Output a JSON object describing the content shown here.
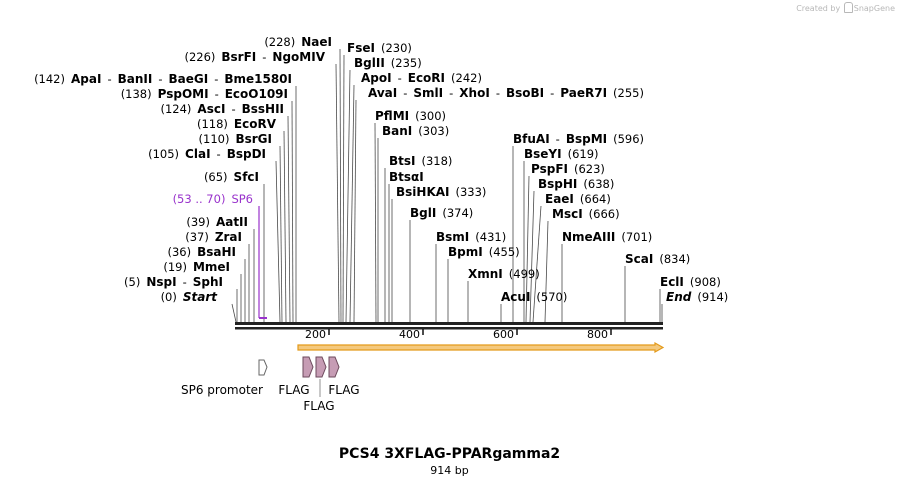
{
  "credit": {
    "label": "Created by",
    "brand": "SnapGene"
  },
  "plasmid": {
    "name": "PCS4 3XFLAG-PPARgamma2",
    "length_label": "914 bp"
  },
  "colors": {
    "primer": "#9933cc",
    "orf_fill": "#f4c97e",
    "orf_stroke": "#e39a1b",
    "feature": "#c69cb4",
    "line": "#4a4a4a"
  },
  "sites": [
    {
      "id": "s1",
      "row": [
        {
          "t": "(228)",
          "b": false
        },
        {
          "t": "NaeI",
          "b": true
        }
      ]
    },
    {
      "id": "s2",
      "row": [
        {
          "t": "(226)",
          "b": false
        },
        {
          "t": "BsrFI",
          "b": true
        },
        {
          "t": "-",
          "b": false
        },
        {
          "t": "NgoMIV",
          "b": true
        }
      ]
    },
    {
      "id": "s3",
      "row": [
        {
          "t": "(142)",
          "b": false
        },
        {
          "t": "ApaI",
          "b": true
        },
        {
          "t": "-",
          "b": false
        },
        {
          "t": "BanII",
          "b": true
        },
        {
          "t": "-",
          "b": false
        },
        {
          "t": "BaeGI",
          "b": true
        },
        {
          "t": "-",
          "b": false
        },
        {
          "t": "Bme1580I",
          "b": true
        }
      ]
    },
    {
      "id": "s4",
      "row": [
        {
          "t": "(138)",
          "b": false
        },
        {
          "t": "PspOMI",
          "b": true
        },
        {
          "t": "-",
          "b": false
        },
        {
          "t": "EcoO109I",
          "b": true
        }
      ]
    },
    {
      "id": "s5",
      "row": [
        {
          "t": "(124)",
          "b": false
        },
        {
          "t": "AscI",
          "b": true
        },
        {
          "t": "-",
          "b": false
        },
        {
          "t": "BssHII",
          "b": true
        }
      ]
    },
    {
      "id": "s6",
      "row": [
        {
          "t": "(118)",
          "b": false
        },
        {
          "t": "EcoRV",
          "b": true
        }
      ]
    },
    {
      "id": "s7",
      "row": [
        {
          "t": "(110)",
          "b": false
        },
        {
          "t": "BsrGI",
          "b": true
        }
      ]
    },
    {
      "id": "s8",
      "row": [
        {
          "t": "(105)",
          "b": false
        },
        {
          "t": "ClaI",
          "b": true
        },
        {
          "t": "-",
          "b": false
        },
        {
          "t": "BspDI",
          "b": true
        }
      ]
    },
    {
      "id": "s9",
      "row": [
        {
          "t": "(65)",
          "b": false
        },
        {
          "t": "SfcI",
          "b": true
        }
      ]
    },
    {
      "id": "s10",
      "row": [
        {
          "t": "(53 .. 70)",
          "b": false,
          "c": "primer"
        },
        {
          "t": "SP6",
          "b": false,
          "c": "primer"
        }
      ]
    },
    {
      "id": "s11",
      "row": [
        {
          "t": "(39)",
          "b": false
        },
        {
          "t": "AatII",
          "b": true
        }
      ]
    },
    {
      "id": "s12",
      "row": [
        {
          "t": "(37)",
          "b": false
        },
        {
          "t": "ZraI",
          "b": true
        }
      ]
    },
    {
      "id": "s13",
      "row": [
        {
          "t": "(36)",
          "b": false
        },
        {
          "t": "BsaHI",
          "b": true
        }
      ]
    },
    {
      "id": "s14",
      "row": [
        {
          "t": "(19)",
          "b": false
        },
        {
          "t": "MmeI",
          "b": true
        }
      ]
    },
    {
      "id": "s15",
      "row": [
        {
          "t": "(5)",
          "b": false
        },
        {
          "t": "NspI",
          "b": true
        },
        {
          "t": "-",
          "b": false
        },
        {
          "t": "SphI",
          "b": true
        }
      ]
    },
    {
      "id": "s16",
      "row": [
        {
          "t": "(0)",
          "b": false
        },
        {
          "t": "Start",
          "b": true,
          "i": true
        }
      ]
    },
    {
      "id": "s17",
      "row": [
        {
          "t": "FseI",
          "b": true
        },
        {
          "t": "(230)",
          "b": false
        }
      ]
    },
    {
      "id": "s18",
      "row": [
        {
          "t": "BglII",
          "b": true
        },
        {
          "t": "(235)",
          "b": false
        }
      ]
    },
    {
      "id": "s19",
      "row": [
        {
          "t": "ApoI",
          "b": true
        },
        {
          "t": "-",
          "b": false
        },
        {
          "t": "EcoRI",
          "b": true
        },
        {
          "t": "(242)",
          "b": false
        }
      ]
    },
    {
      "id": "s20",
      "row": [
        {
          "t": "AvaI",
          "b": true
        },
        {
          "t": "-",
          "b": false
        },
        {
          "t": "SmlI",
          "b": true
        },
        {
          "t": "-",
          "b": false
        },
        {
          "t": "XhoI",
          "b": true
        },
        {
          "t": "-",
          "b": false
        },
        {
          "t": "BsoBI",
          "b": true
        },
        {
          "t": "-",
          "b": false
        },
        {
          "t": "PaeR7I",
          "b": true
        },
        {
          "t": "(255)",
          "b": false
        }
      ]
    },
    {
      "id": "s21",
      "row": [
        {
          "t": "PflMI",
          "b": true
        },
        {
          "t": "(300)",
          "b": false
        }
      ]
    },
    {
      "id": "s22",
      "row": [
        {
          "t": "BanI",
          "b": true
        },
        {
          "t": "(303)",
          "b": false
        }
      ]
    },
    {
      "id": "s23",
      "row": [
        {
          "t": "BtsI",
          "b": true
        },
        {
          "t": "(318)",
          "b": false
        }
      ]
    },
    {
      "id": "s24",
      "row": [
        {
          "t": "BtsαI",
          "b": true
        }
      ]
    },
    {
      "id": "s25",
      "row": [
        {
          "t": "BsiHKAI",
          "b": true
        },
        {
          "t": "(333)",
          "b": false
        }
      ]
    },
    {
      "id": "s26",
      "row": [
        {
          "t": "BglI",
          "b": true
        },
        {
          "t": "(374)",
          "b": false
        }
      ]
    },
    {
      "id": "s27",
      "row": [
        {
          "t": "BsmI",
          "b": true
        },
        {
          "t": "(431)",
          "b": false
        }
      ]
    },
    {
      "id": "s28",
      "row": [
        {
          "t": "BpmI",
          "b": true
        },
        {
          "t": "(455)",
          "b": false
        }
      ]
    },
    {
      "id": "s29",
      "row": [
        {
          "t": "XmnI",
          "b": true
        },
        {
          "t": "(499)",
          "b": false
        }
      ]
    },
    {
      "id": "s30",
      "row": [
        {
          "t": "AcuI",
          "b": true
        },
        {
          "t": "(570)",
          "b": false
        }
      ]
    },
    {
      "id": "s31",
      "row": [
        {
          "t": "BfuAI",
          "b": true
        },
        {
          "t": "-",
          "b": false
        },
        {
          "t": "BspMI",
          "b": true
        },
        {
          "t": "(596)",
          "b": false
        }
      ]
    },
    {
      "id": "s32",
      "row": [
        {
          "t": "BseYI",
          "b": true
        },
        {
          "t": "(619)",
          "b": false
        }
      ]
    },
    {
      "id": "s33",
      "row": [
        {
          "t": "PspFI",
          "b": true
        },
        {
          "t": "(623)",
          "b": false
        }
      ]
    },
    {
      "id": "s34",
      "row": [
        {
          "t": "BspHI",
          "b": true
        },
        {
          "t": "(638)",
          "b": false
        }
      ]
    },
    {
      "id": "s35",
      "row": [
        {
          "t": "EaeI",
          "b": true
        },
        {
          "t": "(664)",
          "b": false
        }
      ]
    },
    {
      "id": "s36",
      "row": [
        {
          "t": "MscI",
          "b": true
        },
        {
          "t": "(666)",
          "b": false
        }
      ]
    },
    {
      "id": "s37",
      "row": [
        {
          "t": "NmeAIII",
          "b": true
        },
        {
          "t": "(701)",
          "b": false
        }
      ]
    },
    {
      "id": "s38",
      "row": [
        {
          "t": "ScaI",
          "b": true
        },
        {
          "t": "(834)",
          "b": false
        }
      ]
    },
    {
      "id": "s39",
      "row": [
        {
          "t": "EclI",
          "b": true
        },
        {
          "t": "(908)",
          "b": false
        }
      ]
    },
    {
      "id": "s40",
      "row": [
        {
          "t": "End",
          "b": true,
          "i": true
        },
        {
          "t": "(914)",
          "b": false
        }
      ]
    }
  ],
  "axis": {
    "ticks": [
      "200",
      "400",
      "600",
      "800"
    ]
  },
  "features": {
    "promoter": "SP6 promoter",
    "flag1": "FLAG",
    "flag2": "FLAG",
    "flag3": "FLAG"
  }
}
